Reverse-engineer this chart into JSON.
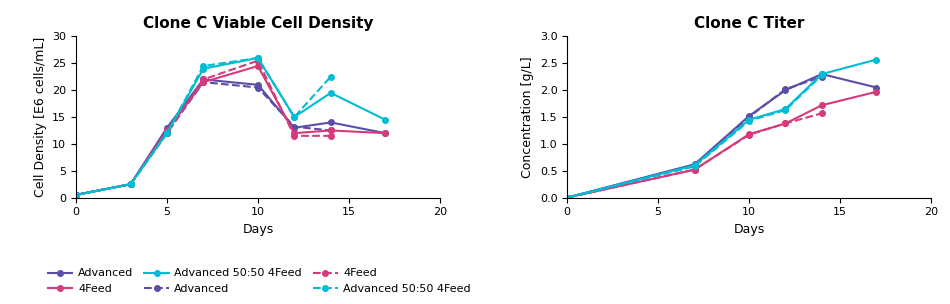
{
  "title_left": "Clone C Viable Cell Density",
  "title_right": "Clone C Titer",
  "xlabel": "Days",
  "ylabel_left": "Cell Density [E6 cells/mL]",
  "ylabel_right": "Concentration [g/L]",
  "vcd": {
    "advanced_solid": {
      "x": [
        0,
        3,
        5,
        7,
        10,
        12,
        14,
        17
      ],
      "y": [
        0.5,
        2.5,
        13.0,
        22.0,
        21.0,
        13.0,
        14.0,
        12.0
      ],
      "color": "#5b4ea8",
      "linestyle": "solid"
    },
    "advanced_dashed": {
      "x": [
        0,
        3,
        5,
        7,
        10,
        12,
        14
      ],
      "y": [
        0.5,
        2.5,
        12.0,
        21.5,
        20.5,
        13.2,
        12.5
      ],
      "color": "#5b4ea8",
      "linestyle": "dashed"
    },
    "feed4_solid": {
      "x": [
        0,
        3,
        5,
        7,
        10,
        12,
        14,
        17
      ],
      "y": [
        0.5,
        2.5,
        12.5,
        21.5,
        24.5,
        12.0,
        12.5,
        12.0
      ],
      "color": "#d63a7a",
      "linestyle": "solid"
    },
    "feed4_dashed": {
      "x": [
        0,
        3,
        5,
        7,
        10,
        12,
        14
      ],
      "y": [
        0.5,
        2.5,
        12.0,
        22.0,
        25.5,
        11.5,
        11.5
      ],
      "color": "#d63a7a",
      "linestyle": "dashed"
    },
    "adv5050_solid": {
      "x": [
        0,
        3,
        5,
        7,
        10,
        12,
        14,
        17
      ],
      "y": [
        0.5,
        2.5,
        12.0,
        24.0,
        26.0,
        15.0,
        19.5,
        14.5
      ],
      "color": "#00bcd4",
      "linestyle": "solid"
    },
    "adv5050_dashed": {
      "x": [
        0,
        3,
        5,
        7,
        10,
        12,
        14
      ],
      "y": [
        0.5,
        2.5,
        12.0,
        24.5,
        26.0,
        15.0,
        22.5
      ],
      "color": "#00bcd4",
      "linestyle": "dashed"
    }
  },
  "titer": {
    "advanced_solid": {
      "x": [
        0,
        7,
        10,
        12,
        14,
        17
      ],
      "y": [
        0.0,
        0.62,
        1.52,
        2.0,
        2.3,
        2.05
      ],
      "color": "#5b4ea8",
      "linestyle": "solid"
    },
    "advanced_dashed": {
      "x": [
        0,
        7,
        10,
        12,
        14
      ],
      "y": [
        0.0,
        0.6,
        1.5,
        2.02,
        2.25
      ],
      "color": "#5b4ea8",
      "linestyle": "dashed"
    },
    "feed4_solid": {
      "x": [
        0,
        7,
        10,
        12,
        14,
        17
      ],
      "y": [
        0.0,
        0.52,
        1.18,
        1.38,
        1.72,
        1.97
      ],
      "color": "#d63a7a",
      "linestyle": "solid"
    },
    "feed4_dashed": {
      "x": [
        0,
        7,
        10,
        12,
        14
      ],
      "y": [
        0.0,
        0.52,
        1.17,
        1.38,
        1.57
      ],
      "color": "#d63a7a",
      "linestyle": "dashed"
    },
    "adv5050_solid": {
      "x": [
        0,
        7,
        10,
        12,
        14,
        17
      ],
      "y": [
        0.0,
        0.6,
        1.45,
        1.65,
        2.3,
        2.57
      ],
      "color": "#00bcd4",
      "linestyle": "solid"
    },
    "adv5050_dashed": {
      "x": [
        0,
        7,
        10,
        12,
        14
      ],
      "y": [
        0.0,
        0.58,
        1.43,
        1.63,
        2.28
      ],
      "color": "#00bcd4",
      "linestyle": "dashed"
    }
  },
  "vcd_ylim": [
    0,
    30
  ],
  "vcd_yticks": [
    0,
    5,
    10,
    15,
    20,
    25,
    30
  ],
  "titer_ylim": [
    0,
    3.0
  ],
  "titer_yticks": [
    0.0,
    0.5,
    1.0,
    1.5,
    2.0,
    2.5,
    3.0
  ],
  "xlim": [
    0,
    20
  ],
  "xticks": [
    0,
    5,
    10,
    15,
    20
  ],
  "legend_row1": [
    {
      "label": "Advanced",
      "color": "#5b4ea8",
      "linestyle": "solid"
    },
    {
      "label": "4Feed",
      "color": "#d63a7a",
      "linestyle": "solid"
    },
    {
      "label": "Advanced 50:50 4Feed",
      "color": "#00bcd4",
      "linestyle": "solid"
    }
  ],
  "legend_row2": [
    {
      "label": "Advanced",
      "color": "#5b4ea8",
      "linestyle": "dashed"
    },
    {
      "label": "4Feed",
      "color": "#d63a7a",
      "linestyle": "dashed"
    },
    {
      "label": "Advanced 50:50 4Feed",
      "color": "#00bcd4",
      "linestyle": "dashed"
    }
  ],
  "marker": "o",
  "markersize": 4,
  "linewidth": 1.5,
  "background_color": "#ffffff",
  "title_fontsize": 11,
  "label_fontsize": 9,
  "tick_fontsize": 8,
  "legend_fontsize": 8
}
